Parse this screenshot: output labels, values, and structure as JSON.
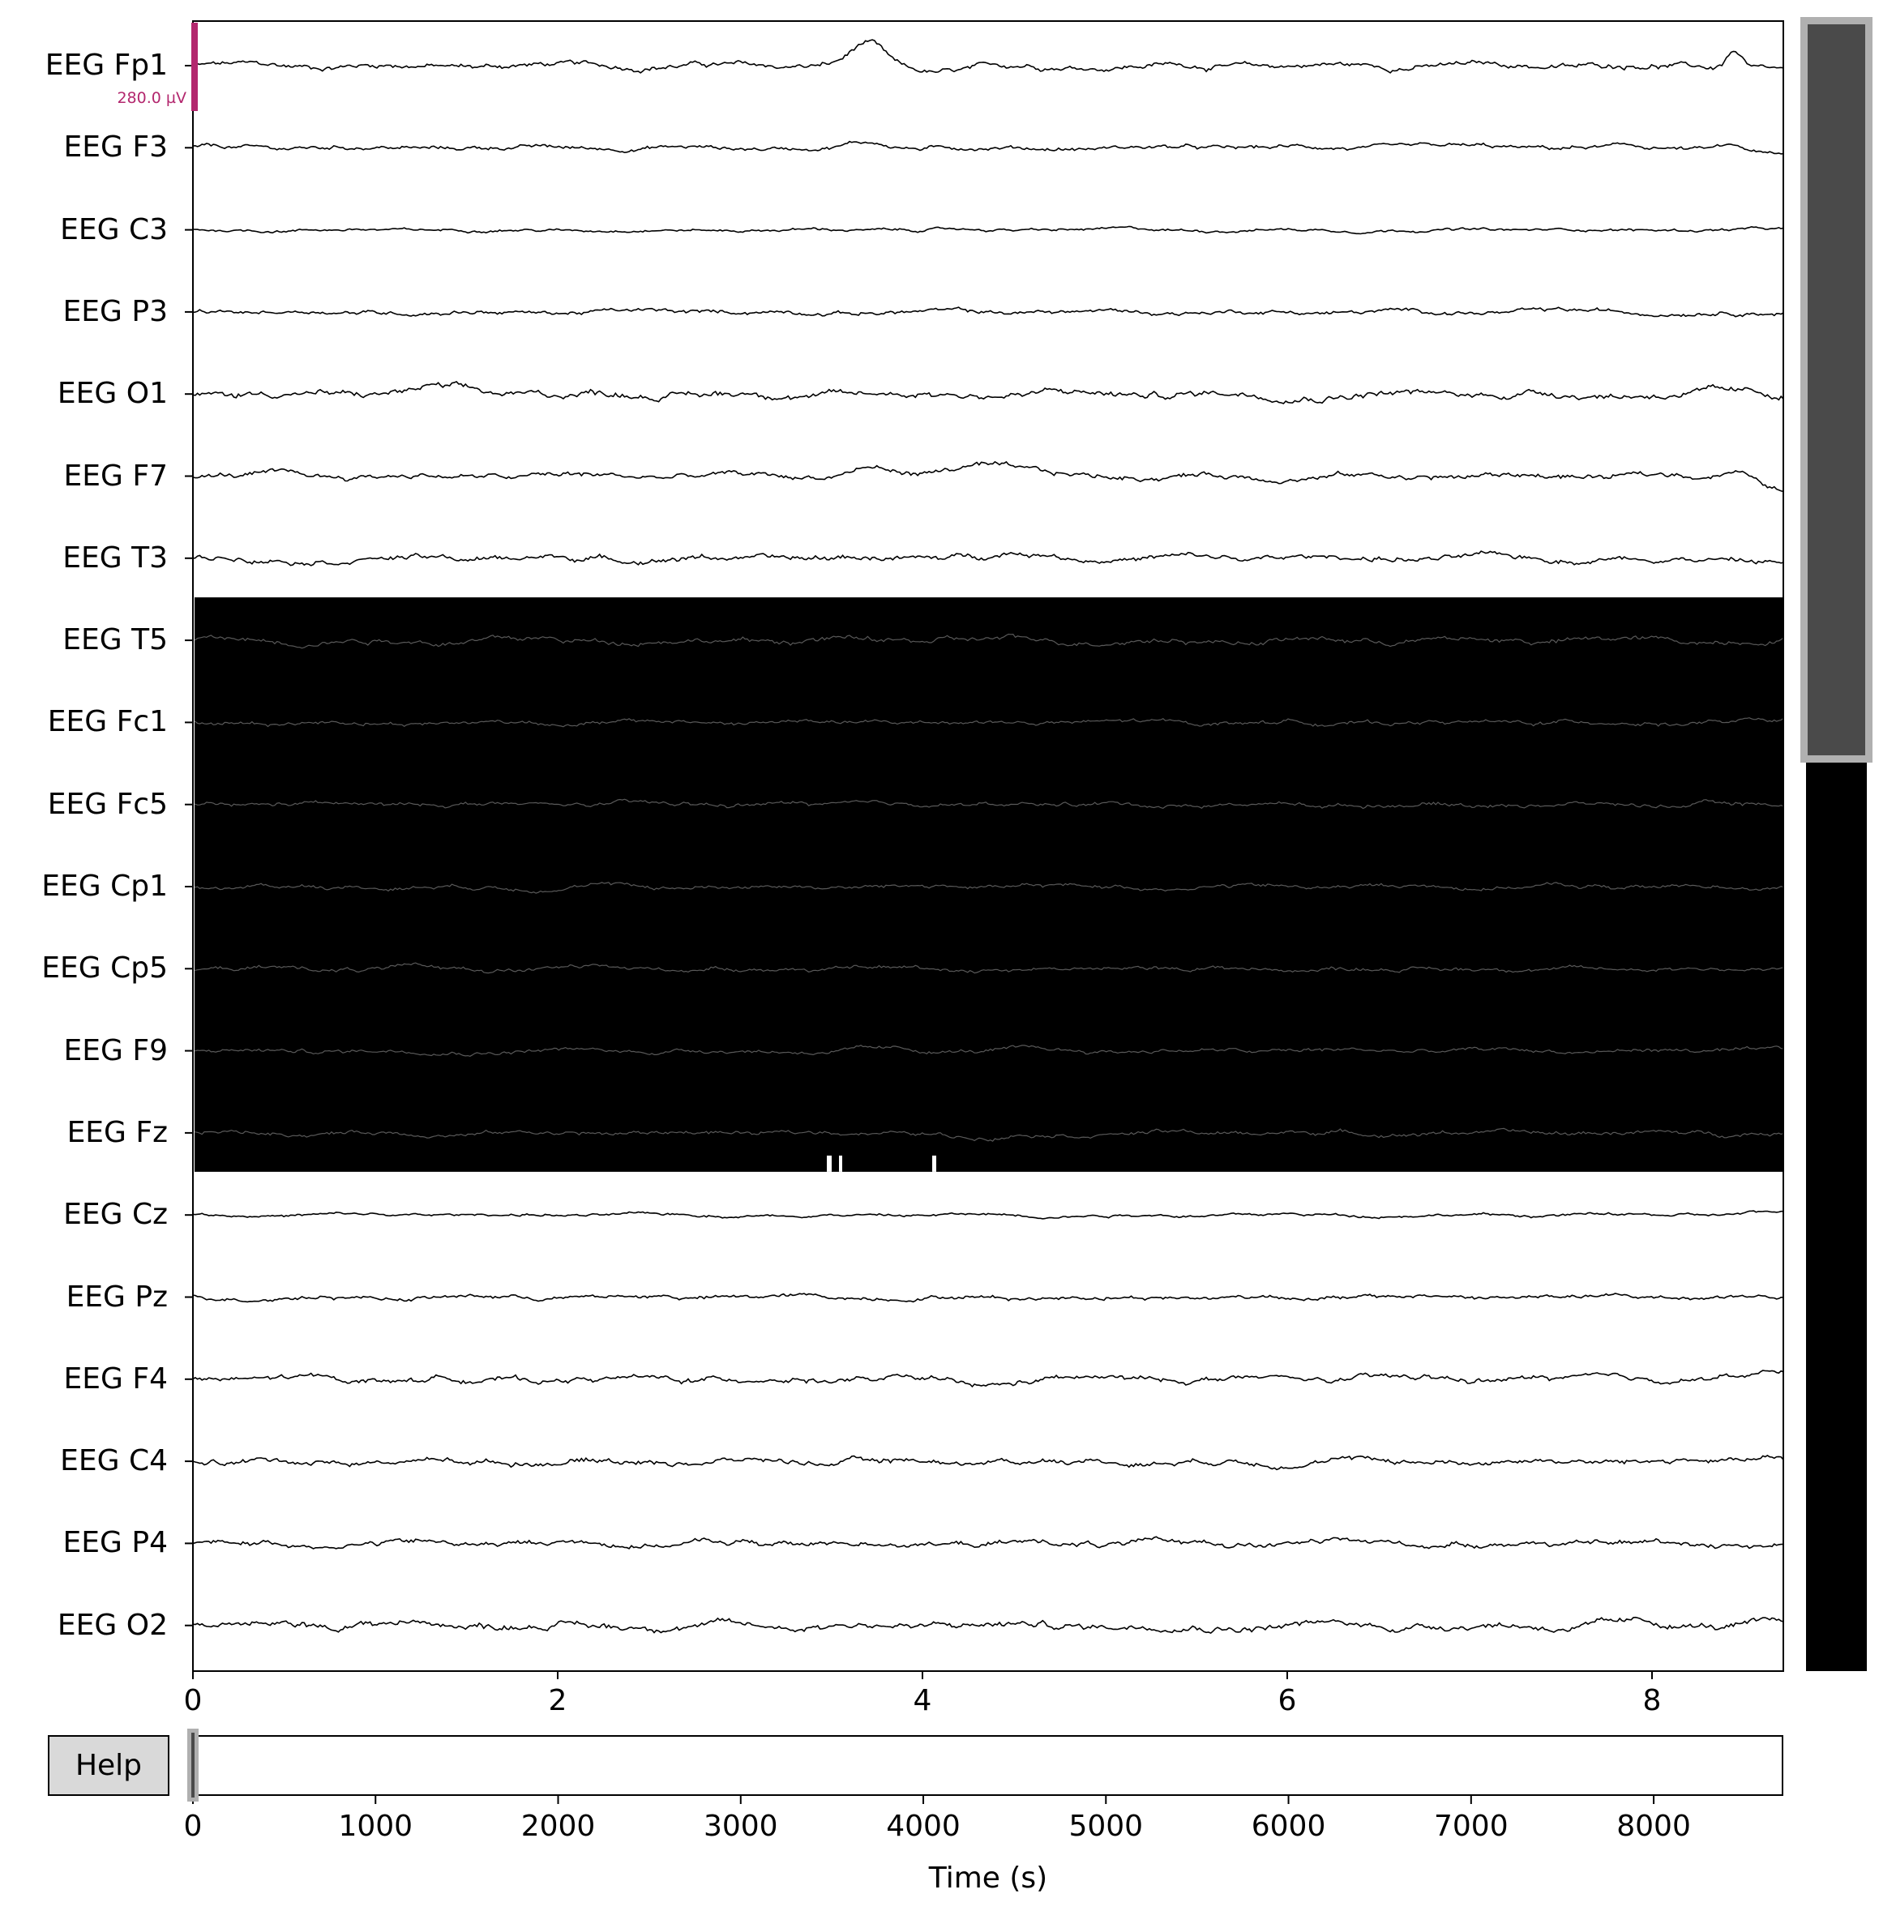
{
  "channels": [
    {
      "name": "EEG Fp1",
      "events": [
        {
          "t": 3.7,
          "amp": 28,
          "w": 0.12
        },
        {
          "t": 4.1,
          "amp": -8,
          "w": 0.3
        },
        {
          "t": 8.45,
          "amp": 22,
          "w": 0.06
        },
        {
          "t": 8.8,
          "amp": -9,
          "w": 0.35
        }
      ],
      "noise": 4
    },
    {
      "name": "EEG F3",
      "events": [
        {
          "t": 3.7,
          "amp": 7,
          "w": 0.15
        },
        {
          "t": 8.45,
          "amp": 6,
          "w": 0.1
        },
        {
          "t": 8.8,
          "amp": -12,
          "w": 0.35
        }
      ],
      "noise": 3
    },
    {
      "name": "EEG C3",
      "events": [],
      "noise": 2
    },
    {
      "name": "EEG P3",
      "events": [],
      "noise": 3
    },
    {
      "name": "EEG O1",
      "events": [
        {
          "t": 1.3,
          "amp": 6,
          "w": 0.2
        }
      ],
      "noise": 5
    },
    {
      "name": "EEG F7",
      "events": [
        {
          "t": 3.7,
          "amp": 10,
          "w": 0.15
        },
        {
          "t": 4.3,
          "amp": 14,
          "w": 0.25
        },
        {
          "t": 8.45,
          "amp": 8,
          "w": 0.1
        },
        {
          "t": 8.8,
          "amp": -22,
          "w": 0.2
        }
      ],
      "noise": 4
    },
    {
      "name": "EEG T3",
      "events": [
        {
          "t": 4.5,
          "amp": 6,
          "w": 0.3
        },
        {
          "t": 8.8,
          "amp": -6,
          "w": 0.3
        }
      ],
      "noise": 4
    },
    {
      "name": "EEG T5",
      "events": [],
      "noise": 4
    },
    {
      "name": "EEG Fc1",
      "events": [],
      "noise": 3
    },
    {
      "name": "EEG Fc5",
      "events": [],
      "noise": 3
    },
    {
      "name": "EEG Cp1",
      "events": [],
      "noise": 3
    },
    {
      "name": "EEG Cp5",
      "events": [],
      "noise": 3
    },
    {
      "name": "EEG F9",
      "events": [],
      "noise": 3
    },
    {
      "name": "EEG Fz",
      "events": [
        {
          "t": 4.3,
          "amp": -6,
          "w": 0.2
        }
      ],
      "noise": 3
    },
    {
      "name": "EEG Cz",
      "events": [
        {
          "t": 8.9,
          "amp": 5,
          "w": 0.3
        }
      ],
      "noise": 2
    },
    {
      "name": "EEG Pz",
      "events": [],
      "noise": 3
    },
    {
      "name": "EEG F4",
      "events": [
        {
          "t": 4.3,
          "amp": -9,
          "w": 0.25
        },
        {
          "t": 8.85,
          "amp": 12,
          "w": 0.3
        }
      ],
      "noise": 4
    },
    {
      "name": "EEG C4",
      "events": [
        {
          "t": 8.9,
          "amp": 6,
          "w": 0.3
        }
      ],
      "noise": 4
    },
    {
      "name": "EEG P4",
      "events": [],
      "noise": 4
    },
    {
      "name": "EEG O2",
      "events": [
        {
          "t": 1.3,
          "amp": 5,
          "w": 0.2
        }
      ],
      "noise": 5
    }
  ],
  "bad_channel_range": [
    "EEG T5",
    "EEG Fz"
  ],
  "scale_bar": {
    "label": "280.0 µV",
    "color": "#b3276e"
  },
  "time_axis": {
    "ticks": [
      "0",
      "2",
      "4",
      "6",
      "8"
    ],
    "tick_values": [
      0,
      2,
      4,
      6,
      8
    ],
    "xlim": [
      0,
      10
    ]
  },
  "overview_axis": {
    "ticks": [
      "0",
      "1000",
      "2000",
      "3000",
      "4000",
      "5000",
      "6000",
      "7000",
      "8000"
    ],
    "tick_values": [
      0,
      1000,
      2000,
      3000,
      4000,
      5000,
      6000,
      7000,
      8000
    ],
    "xlim": [
      0,
      8710
    ],
    "xlabel": "Time (s)"
  },
  "help_button": {
    "label": "Help"
  },
  "vertical_scroll": {
    "visible_fraction": 0.45
  },
  "colors": {
    "trace": "#000000",
    "scrollbar_thumb": "#4a4a4a",
    "scrollbar_border": "#b0b0b0",
    "help_bg": "#d9d9d9"
  }
}
